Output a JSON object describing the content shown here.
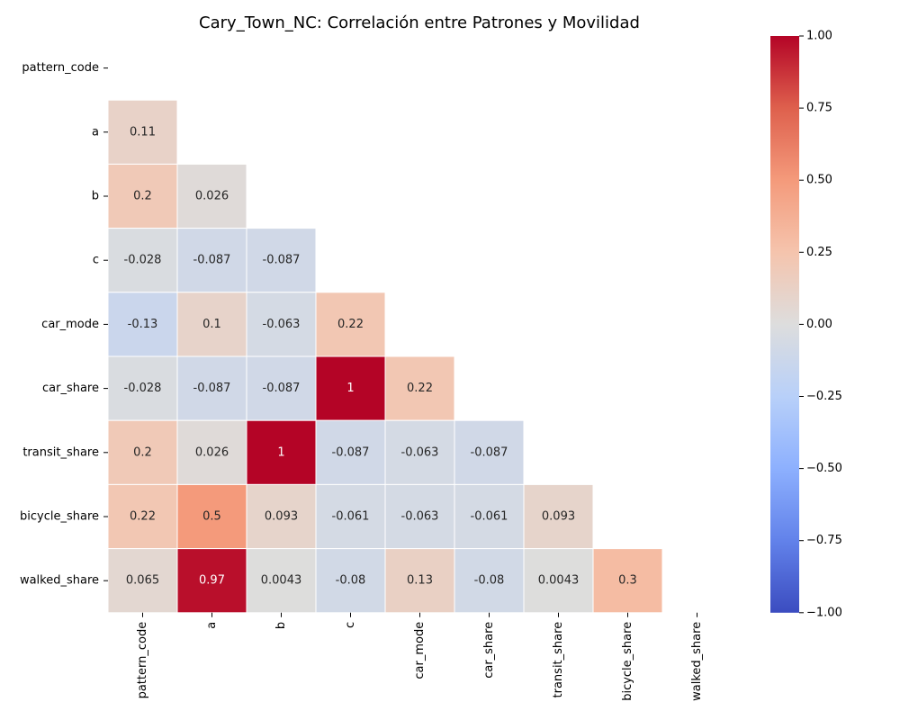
{
  "chart_data": {
    "type": "heatmap",
    "title": "Cary_Town_NC: Correlación entre Patrones y Movilidad",
    "xlabel": "",
    "ylabel": "",
    "variables": [
      "pattern_code",
      "a",
      "b",
      "c",
      "car_mode",
      "car_share",
      "transit_share",
      "bicycle_share",
      "walked_share"
    ],
    "mask": "upper-triangle-including-diagonal",
    "values": [
      [
        null,
        null,
        null,
        null,
        null,
        null,
        null,
        null,
        null
      ],
      [
        0.11,
        null,
        null,
        null,
        null,
        null,
        null,
        null,
        null
      ],
      [
        0.2,
        0.026,
        null,
        null,
        null,
        null,
        null,
        null,
        null
      ],
      [
        -0.028,
        -0.087,
        -0.087,
        null,
        null,
        null,
        null,
        null,
        null
      ],
      [
        -0.13,
        0.1,
        -0.063,
        0.22,
        null,
        null,
        null,
        null,
        null
      ],
      [
        -0.028,
        -0.087,
        -0.087,
        1,
        0.22,
        null,
        null,
        null,
        null
      ],
      [
        0.2,
        0.026,
        1,
        -0.087,
        -0.063,
        -0.087,
        null,
        null,
        null
      ],
      [
        0.22,
        0.5,
        0.093,
        -0.061,
        -0.063,
        -0.061,
        0.093,
        null,
        null
      ],
      [
        0.065,
        0.97,
        0.0043,
        -0.08,
        0.13,
        -0.08,
        0.0043,
        0.3,
        null
      ]
    ],
    "labels": [
      [
        null,
        null,
        null,
        null,
        null,
        null,
        null,
        null,
        null
      ],
      [
        "0.11",
        null,
        null,
        null,
        null,
        null,
        null,
        null,
        null
      ],
      [
        "0.2",
        "0.026",
        null,
        null,
        null,
        null,
        null,
        null,
        null
      ],
      [
        "-0.028",
        "-0.087",
        "-0.087",
        null,
        null,
        null,
        null,
        null,
        null
      ],
      [
        "-0.13",
        "0.1",
        "-0.063",
        "0.22",
        null,
        null,
        null,
        null,
        null
      ],
      [
        "-0.028",
        "-0.087",
        "-0.087",
        "1",
        "0.22",
        null,
        null,
        null,
        null
      ],
      [
        "0.2",
        "0.026",
        "1",
        "-0.087",
        "-0.063",
        "-0.087",
        null,
        null,
        null
      ],
      [
        "0.22",
        "0.5",
        "0.093",
        "-0.061",
        "-0.063",
        "-0.061",
        "0.093",
        null,
        null
      ],
      [
        "0.065",
        "0.97",
        "0.0043",
        "-0.08",
        "0.13",
        "-0.08",
        "0.0043",
        "0.3",
        null
      ]
    ],
    "colormap": "coolwarm",
    "vmin": -1,
    "vmax": 1,
    "colorbar": {
      "position": "right",
      "ticks": [
        1.0,
        0.75,
        0.5,
        0.25,
        0.0,
        -0.25,
        -0.5,
        -0.75,
        -1.0
      ],
      "tick_labels": [
        "1.00",
        "0.75",
        "0.50",
        "0.25",
        "0.00",
        "−0.25",
        "−0.50",
        "−0.75",
        "−1.00"
      ]
    },
    "cell_border_color": "#ffffff",
    "grid": false
  }
}
